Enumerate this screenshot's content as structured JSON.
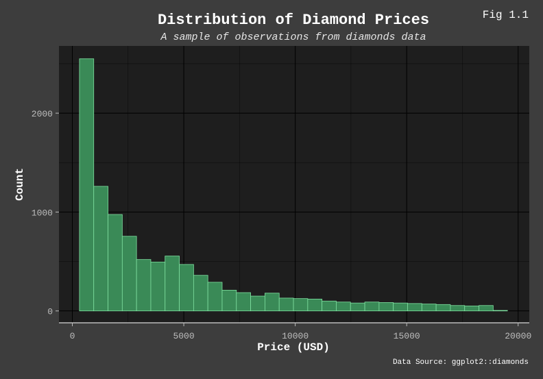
{
  "figure_label": "Fig 1.1",
  "caption": "Data Source: ggplot2::diamonds",
  "colors": {
    "background": "#3d3d3d",
    "panel": "#1e1e1e",
    "bar_fill": "#3a8a57",
    "bar_stroke": "#7fe0a0",
    "grid": "#000000",
    "axis_line": "#d9d9d9"
  },
  "chart_data": {
    "type": "bar",
    "title": "Distribution of Diamond Prices",
    "subtitle": "A sample of observations from diamonds data",
    "xlabel": "Price (USD)",
    "ylabel": "Count",
    "xlim": [
      -600,
      20500
    ],
    "ylim": [
      -120,
      2680
    ],
    "x_ticks": [
      0,
      5000,
      10000,
      15000,
      20000
    ],
    "y_ticks": [
      0,
      1000,
      2000
    ],
    "grid": true,
    "bin_width": 640,
    "bins": [
      {
        "x0": 320,
        "x1": 960,
        "count": 2550
      },
      {
        "x0": 960,
        "x1": 1600,
        "count": 1260
      },
      {
        "x0": 1600,
        "x1": 2240,
        "count": 975
      },
      {
        "x0": 2240,
        "x1": 2880,
        "count": 755
      },
      {
        "x0": 2880,
        "x1": 3520,
        "count": 520
      },
      {
        "x0": 3520,
        "x1": 4160,
        "count": 495
      },
      {
        "x0": 4160,
        "x1": 4800,
        "count": 555
      },
      {
        "x0": 4800,
        "x1": 5440,
        "count": 470
      },
      {
        "x0": 5440,
        "x1": 6080,
        "count": 360
      },
      {
        "x0": 6080,
        "x1": 6720,
        "count": 290
      },
      {
        "x0": 6720,
        "x1": 7360,
        "count": 210
      },
      {
        "x0": 7360,
        "x1": 8000,
        "count": 185
      },
      {
        "x0": 8000,
        "x1": 8640,
        "count": 150
      },
      {
        "x0": 8640,
        "x1": 9280,
        "count": 180
      },
      {
        "x0": 9280,
        "x1": 9920,
        "count": 130
      },
      {
        "x0": 9920,
        "x1": 10560,
        "count": 125
      },
      {
        "x0": 10560,
        "x1": 11200,
        "count": 120
      },
      {
        "x0": 11200,
        "x1": 11840,
        "count": 100
      },
      {
        "x0": 11840,
        "x1": 12480,
        "count": 90
      },
      {
        "x0": 12480,
        "x1": 13120,
        "count": 80
      },
      {
        "x0": 13120,
        "x1": 13760,
        "count": 90
      },
      {
        "x0": 13760,
        "x1": 14400,
        "count": 85
      },
      {
        "x0": 14400,
        "x1": 15040,
        "count": 80
      },
      {
        "x0": 15040,
        "x1": 15680,
        "count": 75
      },
      {
        "x0": 15680,
        "x1": 16320,
        "count": 70
      },
      {
        "x0": 16320,
        "x1": 16960,
        "count": 65
      },
      {
        "x0": 16960,
        "x1": 17600,
        "count": 55
      },
      {
        "x0": 17600,
        "x1": 18240,
        "count": 50
      },
      {
        "x0": 18240,
        "x1": 18880,
        "count": 55
      },
      {
        "x0": 18880,
        "x1": 19520,
        "count": 5
      }
    ]
  }
}
